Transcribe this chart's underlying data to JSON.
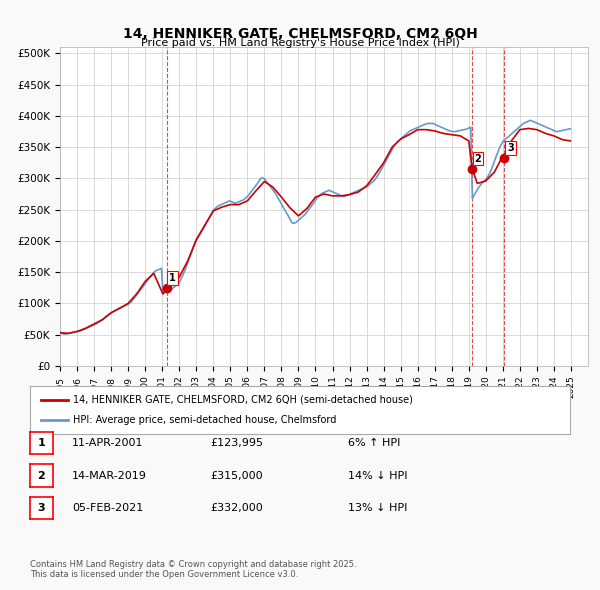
{
  "title": "14, HENNIKER GATE, CHELMSFORD, CM2 6QH",
  "subtitle": "Price paid vs. HM Land Registry's House Price Index (HPI)",
  "background_color": "#f9f9f9",
  "plot_background": "#ffffff",
  "grid_color": "#cccccc",
  "y_ticks": [
    0,
    50000,
    100000,
    150000,
    200000,
    250000,
    300000,
    350000,
    400000,
    450000,
    500000
  ],
  "y_tick_labels": [
    "£0",
    "£50K",
    "£100K",
    "£150K",
    "£200K",
    "£250K",
    "£300K",
    "£350K",
    "£400K",
    "£450K",
    "£500K"
  ],
  "ylim": [
    0,
    510000
  ],
  "xlim_start": 1995.0,
  "xlim_end": 2026.0,
  "red_line_color": "#cc0000",
  "blue_line_color": "#6699cc",
  "sale_marker_color": "#cc0000",
  "sale_number_bg": "#ffffff",
  "sale_number_border": "#cc0000",
  "sale1_x": 2001.27,
  "sale1_y": 123995,
  "sale2_x": 2019.2,
  "sale2_y": 315000,
  "sale3_x": 2021.09,
  "sale3_y": 332000,
  "dashed_line_color": "#cc0000",
  "legend_label_red": "14, HENNIKER GATE, CHELMSFORD, CM2 6QH (semi-detached house)",
  "legend_label_blue": "HPI: Average price, semi-detached house, Chelmsford",
  "table_rows": [
    {
      "num": "1",
      "date": "11-APR-2001",
      "price": "£123,995",
      "rel": "6% ↑ HPI"
    },
    {
      "num": "2",
      "date": "14-MAR-2019",
      "price": "£315,000",
      "rel": "14% ↓ HPI"
    },
    {
      "num": "3",
      "date": "05-FEB-2021",
      "price": "£332,000",
      "rel": "13% ↓ HPI"
    }
  ],
  "footer": "Contains HM Land Registry data © Crown copyright and database right 2025.\nThis data is licensed under the Open Government Licence v3.0.",
  "hpi_data": {
    "years": [
      1995.04,
      1995.12,
      1995.21,
      1995.29,
      1995.38,
      1995.46,
      1995.54,
      1995.62,
      1995.71,
      1995.79,
      1995.88,
      1995.96,
      1996.04,
      1996.12,
      1996.21,
      1996.29,
      1996.38,
      1996.46,
      1996.54,
      1996.62,
      1996.71,
      1996.79,
      1996.88,
      1996.96,
      1997.04,
      1997.12,
      1997.21,
      1997.29,
      1997.38,
      1997.46,
      1997.54,
      1997.62,
      1997.71,
      1997.79,
      1997.88,
      1997.96,
      1998.04,
      1998.12,
      1998.21,
      1998.29,
      1998.38,
      1998.46,
      1998.54,
      1998.62,
      1998.71,
      1998.79,
      1998.88,
      1998.96,
      1999.04,
      1999.12,
      1999.21,
      1999.29,
      1999.38,
      1999.46,
      1999.54,
      1999.62,
      1999.71,
      1999.79,
      1999.88,
      1999.96,
      2000.04,
      2000.12,
      2000.21,
      2000.29,
      2000.38,
      2000.46,
      2000.54,
      2000.62,
      2000.71,
      2000.79,
      2000.88,
      2000.96,
      2001.04,
      2001.12,
      2001.21,
      2001.29,
      2001.38,
      2001.46,
      2001.54,
      2001.62,
      2001.71,
      2001.79,
      2001.88,
      2001.96,
      2002.04,
      2002.12,
      2002.21,
      2002.29,
      2002.38,
      2002.46,
      2002.54,
      2002.62,
      2002.71,
      2002.79,
      2002.88,
      2002.96,
      2003.04,
      2003.12,
      2003.21,
      2003.29,
      2003.38,
      2003.46,
      2003.54,
      2003.62,
      2003.71,
      2003.79,
      2003.88,
      2003.96,
      2004.04,
      2004.12,
      2004.21,
      2004.29,
      2004.38,
      2004.46,
      2004.54,
      2004.62,
      2004.71,
      2004.79,
      2004.88,
      2004.96,
      2005.04,
      2005.12,
      2005.21,
      2005.29,
      2005.38,
      2005.46,
      2005.54,
      2005.62,
      2005.71,
      2005.79,
      2005.88,
      2005.96,
      2006.04,
      2006.12,
      2006.21,
      2006.29,
      2006.38,
      2006.46,
      2006.54,
      2006.62,
      2006.71,
      2006.79,
      2006.88,
      2006.96,
      2007.04,
      2007.12,
      2007.21,
      2007.29,
      2007.38,
      2007.46,
      2007.54,
      2007.62,
      2007.71,
      2007.79,
      2007.88,
      2007.96,
      2008.04,
      2008.12,
      2008.21,
      2008.29,
      2008.38,
      2008.46,
      2008.54,
      2008.62,
      2008.71,
      2008.79,
      2008.88,
      2008.96,
      2009.04,
      2009.12,
      2009.21,
      2009.29,
      2009.38,
      2009.46,
      2009.54,
      2009.62,
      2009.71,
      2009.79,
      2009.88,
      2009.96,
      2010.04,
      2010.12,
      2010.21,
      2010.29,
      2010.38,
      2010.46,
      2010.54,
      2010.62,
      2010.71,
      2010.79,
      2010.88,
      2010.96,
      2011.04,
      2011.12,
      2011.21,
      2011.29,
      2011.38,
      2011.46,
      2011.54,
      2011.62,
      2011.71,
      2011.79,
      2011.88,
      2011.96,
      2012.04,
      2012.12,
      2012.21,
      2012.29,
      2012.38,
      2012.46,
      2012.54,
      2012.62,
      2012.71,
      2012.79,
      2012.88,
      2012.96,
      2013.04,
      2013.12,
      2013.21,
      2013.29,
      2013.38,
      2013.46,
      2013.54,
      2013.62,
      2013.71,
      2013.79,
      2013.88,
      2013.96,
      2014.04,
      2014.12,
      2014.21,
      2014.29,
      2014.38,
      2014.46,
      2014.54,
      2014.62,
      2014.71,
      2014.79,
      2014.88,
      2014.96,
      2015.04,
      2015.12,
      2015.21,
      2015.29,
      2015.38,
      2015.46,
      2015.54,
      2015.62,
      2015.71,
      2015.79,
      2015.88,
      2015.96,
      2016.04,
      2016.12,
      2016.21,
      2016.29,
      2016.38,
      2016.46,
      2016.54,
      2016.62,
      2016.71,
      2016.79,
      2016.88,
      2016.96,
      2017.04,
      2017.12,
      2017.21,
      2017.29,
      2017.38,
      2017.46,
      2017.54,
      2017.62,
      2017.71,
      2017.79,
      2017.88,
      2017.96,
      2018.04,
      2018.12,
      2018.21,
      2018.29,
      2018.38,
      2018.46,
      2018.54,
      2018.62,
      2018.71,
      2018.79,
      2018.88,
      2018.96,
      2019.04,
      2019.12,
      2019.21,
      2019.29,
      2019.38,
      2019.46,
      2019.54,
      2019.62,
      2019.71,
      2019.79,
      2019.88,
      2019.96,
      2020.04,
      2020.12,
      2020.21,
      2020.29,
      2020.38,
      2020.46,
      2020.54,
      2020.62,
      2020.71,
      2020.79,
      2020.88,
      2020.96,
      2021.04,
      2021.12,
      2021.21,
      2021.29,
      2021.38,
      2021.46,
      2021.54,
      2021.62,
      2021.71,
      2021.79,
      2021.88,
      2021.96,
      2022.04,
      2022.12,
      2022.21,
      2022.29,
      2022.38,
      2022.46,
      2022.54,
      2022.62,
      2022.71,
      2022.79,
      2022.88,
      2022.96,
      2023.04,
      2023.12,
      2023.21,
      2023.29,
      2023.38,
      2023.46,
      2023.54,
      2023.62,
      2023.71,
      2023.79,
      2023.88,
      2023.96,
      2024.04,
      2024.12,
      2024.21,
      2024.29,
      2024.38,
      2024.46,
      2024.54,
      2024.62,
      2024.71,
      2024.79,
      2024.88,
      2024.96
    ],
    "values": [
      52000,
      51500,
      51000,
      50500,
      51000,
      51500,
      52000,
      52500,
      53000,
      53500,
      54000,
      54500,
      55000,
      55500,
      56000,
      57000,
      58000,
      59000,
      60000,
      61000,
      62000,
      63000,
      64000,
      65000,
      66000,
      67000,
      68500,
      70000,
      71500,
      73000,
      75000,
      77000,
      79000,
      80500,
      82000,
      83500,
      85000,
      86500,
      88000,
      89500,
      91000,
      92000,
      93000,
      94000,
      95000,
      96000,
      97000,
      98000,
      99000,
      101000,
      103000,
      106000,
      109000,
      112000,
      115000,
      118000,
      121000,
      124000,
      127000,
      130000,
      133000,
      136000,
      139000,
      142000,
      145000,
      148000,
      150000,
      152000,
      153000,
      154000,
      155000,
      156000,
      116000,
      117000,
      118000,
      119000,
      120000,
      121500,
      123000,
      124500,
      126000,
      128000,
      130000,
      132000,
      135000,
      140000,
      145000,
      150000,
      156000,
      162000,
      168000,
      174000,
      180000,
      186000,
      192000,
      198000,
      202000,
      206000,
      210000,
      214000,
      218000,
      222000,
      226000,
      230000,
      234000,
      238000,
      242000,
      246000,
      250000,
      252000,
      254000,
      256000,
      257000,
      258000,
      259000,
      260000,
      261000,
      262000,
      263000,
      264000,
      263000,
      262000,
      261000,
      260000,
      261000,
      262000,
      263000,
      264000,
      265000,
      266000,
      268000,
      270000,
      272000,
      275000,
      278000,
      281000,
      284000,
      287000,
      290000,
      293000,
      297000,
      300000,
      301000,
      300000,
      298000,
      295000,
      292000,
      289000,
      286000,
      283000,
      280000,
      277000,
      273000,
      269000,
      265000,
      261000,
      257000,
      253000,
      249000,
      245000,
      241000,
      237000,
      233000,
      229000,
      228000,
      229000,
      230000,
      232000,
      234000,
      236000,
      238000,
      240000,
      242000,
      245000,
      248000,
      251000,
      254000,
      257000,
      260000,
      263000,
      267000,
      270000,
      272000,
      274000,
      276000,
      277000,
      278000,
      279000,
      280000,
      281000,
      280000,
      279000,
      278000,
      277000,
      276000,
      275000,
      274000,
      273000,
      272000,
      271000,
      271000,
      272000,
      273000,
      274000,
      275000,
      276000,
      277000,
      278000,
      279000,
      280000,
      281000,
      282000,
      283000,
      284000,
      285000,
      286000,
      287000,
      289000,
      291000,
      293000,
      295000,
      297000,
      300000,
      303000,
      307000,
      311000,
      315000,
      319000,
      323000,
      327000,
      332000,
      336000,
      340000,
      344000,
      348000,
      352000,
      355000,
      358000,
      360000,
      362000,
      364000,
      366000,
      368000,
      370000,
      372000,
      374000,
      376000,
      377000,
      378000,
      379000,
      380000,
      381000,
      382000,
      383000,
      384000,
      385000,
      386000,
      387000,
      387500,
      388000,
      388000,
      388000,
      388000,
      387000,
      386000,
      385000,
      384000,
      383000,
      382000,
      381000,
      380000,
      379000,
      378000,
      377000,
      376000,
      375500,
      375000,
      375000,
      375000,
      375500,
      376000,
      376500,
      377000,
      377500,
      378000,
      378500,
      379000,
      380000,
      381000,
      382000,
      268000,
      272000,
      276000,
      280000,
      284000,
      287000,
      290000,
      293000,
      295000,
      297000,
      300000,
      303000,
      307000,
      312000,
      318000,
      324000,
      330000,
      336000,
      342000,
      348000,
      353000,
      357000,
      360000,
      362000,
      364000,
      366000,
      368000,
      370000,
      372000,
      374000,
      376000,
      378000,
      380000,
      382000,
      384000,
      386000,
      388000,
      389000,
      390000,
      391000,
      392000,
      393000,
      392000,
      391000,
      390000,
      389000,
      388000,
      387000,
      386000,
      385000,
      384000,
      383000,
      382000,
      381000,
      380000,
      379000,
      378000,
      377000,
      376000,
      375000,
      375000,
      375500,
      376000,
      376500,
      377000,
      377500,
      378000,
      378500,
      379000,
      379500
    ]
  },
  "price_line_data": {
    "years": [
      1995.04,
      1995.5,
      1996.0,
      1996.5,
      1997.0,
      1997.5,
      1998.0,
      1998.5,
      1999.0,
      1999.5,
      2000.0,
      2000.5,
      2001.04,
      2001.27,
      2001.5,
      2002.0,
      2002.5,
      2003.0,
      2003.5,
      2004.0,
      2004.5,
      2005.0,
      2005.5,
      2006.0,
      2006.5,
      2007.0,
      2007.5,
      2008.0,
      2008.5,
      2009.0,
      2009.5,
      2010.0,
      2010.5,
      2011.0,
      2011.5,
      2012.0,
      2012.5,
      2013.0,
      2013.5,
      2014.0,
      2014.5,
      2015.0,
      2015.5,
      2016.0,
      2016.5,
      2017.0,
      2017.5,
      2018.0,
      2018.5,
      2019.0,
      2019.2,
      2019.5,
      2020.0,
      2020.5,
      2021.0,
      2021.09,
      2021.5,
      2022.0,
      2022.5,
      2023.0,
      2023.5,
      2024.0,
      2024.5,
      2024.96
    ],
    "values": [
      53000,
      52000,
      55000,
      60000,
      67000,
      74000,
      85000,
      92000,
      100000,
      115000,
      135000,
      148000,
      115000,
      123995,
      128000,
      142000,
      168000,
      202000,
      225000,
      248000,
      254000,
      258000,
      258000,
      264000,
      280000,
      295000,
      286000,
      270000,
      253000,
      240000,
      252000,
      270000,
      275000,
      272000,
      272000,
      274000,
      278000,
      288000,
      306000,
      325000,
      350000,
      363000,
      370000,
      378000,
      378000,
      376000,
      372000,
      370000,
      368000,
      360000,
      315000,
      292000,
      296000,
      310000,
      336000,
      332000,
      360000,
      378000,
      380000,
      378000,
      372000,
      368000,
      362000,
      360000
    ]
  }
}
